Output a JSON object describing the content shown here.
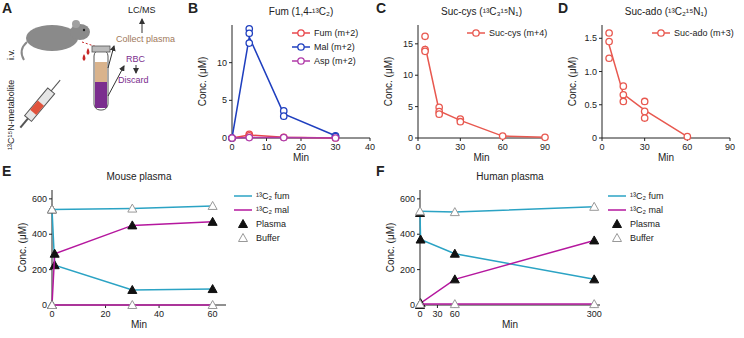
{
  "diagram": {
    "panel": "A",
    "labels": [
      "¹³C¹⁵N-metabolite",
      "i.v.",
      "LC/MS",
      "Collect plasma",
      "RBC",
      "Discard"
    ]
  },
  "chart_data": [
    {
      "panel": "B",
      "type": "line",
      "title": "Fum (1,4-¹³C₂)",
      "x_label": "Min",
      "y_label": "Conc. (μM)",
      "x": [
        0,
        5,
        15,
        30
      ],
      "xlim": [
        0,
        40
      ],
      "xticks": [
        0,
        10,
        20,
        30,
        40
      ],
      "ylim": [
        0,
        15
      ],
      "yticks": [
        0,
        5,
        10
      ],
      "legend": "upper right",
      "marker": "circle-open",
      "series": [
        {
          "name": "Fum (m+2)",
          "color": "#e8474c",
          "values": [
            0,
            0.4,
            0.1,
            0
          ],
          "replicates": [
            [
              0,
              0
            ],
            [
              0.5,
              0.3
            ],
            [
              0.1
            ],
            [
              0
            ]
          ]
        },
        {
          "name": "Mal (m+2)",
          "color": "#1f3fbf",
          "values": [
            0,
            13.4,
            3.2,
            0.3
          ],
          "replicates": [
            [
              0
            ],
            [
              14.5,
              13.9,
              12.6
            ],
            [
              3.6,
              2.9
            ],
            [
              0.3,
              0.2
            ]
          ]
        },
        {
          "name": "Asp (m+2)",
          "color": "#b03aa8",
          "values": [
            0,
            0.05,
            0.05,
            0
          ],
          "replicates": [
            [
              0
            ],
            [
              0.05
            ],
            [
              0.05
            ],
            [
              0
            ]
          ]
        }
      ]
    },
    {
      "panel": "C",
      "type": "line",
      "title": "Suc-cys (¹³C₃¹⁵N₁)",
      "x_label": "Min",
      "y_label": "Conc. (μM)",
      "x": [
        5,
        15,
        30,
        60,
        90
      ],
      "xlim": [
        0,
        90
      ],
      "xticks": [
        0,
        30,
        60,
        90
      ],
      "ylim": [
        0,
        18
      ],
      "yticks": [
        0,
        5,
        10,
        15
      ],
      "legend": "upper right",
      "marker": "circle-open",
      "series": [
        {
          "name": "Suc-cys (m+4)",
          "color": "#e8584f",
          "values": [
            14.7,
            4.3,
            2.8,
            0.3,
            0.1
          ],
          "replicates": [
            [
              16.2,
              14.1,
              13.8
            ],
            [
              4.9,
              4.2,
              3.8
            ],
            [
              3.0,
              2.6
            ],
            [
              0.3
            ],
            [
              0.1
            ]
          ]
        }
      ]
    },
    {
      "panel": "D",
      "type": "line",
      "title": "Suc-ado (¹³C₂¹⁵N₁)",
      "x_label": "Min",
      "y_label": "Conc. (μM)",
      "x": [
        5,
        15,
        30,
        60
      ],
      "xlim": [
        0,
        90
      ],
      "xticks": [
        0,
        30,
        60,
        90
      ],
      "ylim": [
        0,
        1.7
      ],
      "yticks": [
        0,
        0.5,
        {
          "value": 1,
          "label": "1.0"
        },
        1.5
      ],
      "legend": "upper right",
      "marker": "circle-open",
      "series": [
        {
          "name": "Suc-ado (m+3)",
          "color": "#e8584f",
          "values": [
            1.4,
            0.66,
            0.42,
            0.02
          ],
          "replicates": [
            [
              1.58,
              1.45,
              1.2
            ],
            [
              0.78,
              0.65,
              0.55
            ],
            [
              0.55,
              0.4,
              0.3
            ],
            [
              0.02
            ]
          ]
        }
      ]
    },
    {
      "panel": "E",
      "type": "line",
      "title": "Mouse plasma",
      "x_label": "Min",
      "y_label": "Conc. (μM)",
      "xlim": [
        0,
        65
      ],
      "xticks": [
        0,
        20,
        40,
        60
      ],
      "ylim": [
        0,
        650
      ],
      "yticks": [
        0,
        200,
        400,
        600
      ],
      "legend": "right",
      "series": [
        {
          "name": "¹³C₂ fum",
          "group": "Plasma",
          "color": "#2ba3c4",
          "marker": "triangle-filled",
          "x": [
            0,
            1,
            30,
            60
          ],
          "values": [
            540,
            225,
            85,
            90
          ]
        },
        {
          "name": "¹³C₂ mal",
          "group": "Plasma",
          "color": "#b5179e",
          "marker": "triangle-filled",
          "x": [
            0,
            1,
            30,
            60
          ],
          "values": [
            0,
            290,
            450,
            470
          ]
        },
        {
          "name": "¹³C₂ fum",
          "group": "Buffer",
          "color": "#2ba3c4",
          "marker": "triangle-open",
          "x": [
            0,
            30,
            60
          ],
          "values": [
            540,
            545,
            560
          ]
        },
        {
          "name": "¹³C₂ mal",
          "group": "Buffer",
          "color": "#b5179e",
          "marker": "triangle-open",
          "x": [
            0,
            30,
            60
          ],
          "values": [
            0,
            0,
            0
          ]
        }
      ]
    },
    {
      "panel": "F",
      "type": "line",
      "title": "Human plasma",
      "x_label": "Min",
      "y_label": "Conc. (μM)",
      "xlim": [
        0,
        310
      ],
      "xticks": [
        0,
        30,
        60,
        300
      ],
      "ylim": [
        0,
        650
      ],
      "yticks": [
        0,
        200,
        400,
        600
      ],
      "legend": "right",
      "series": [
        {
          "name": "¹³C₂ fum",
          "group": "Plasma",
          "color": "#2ba3c4",
          "marker": "triangle-filled",
          "x": [
            0,
            1,
            60,
            300
          ],
          "values": [
            520,
            370,
            290,
            145
          ]
        },
        {
          "name": "¹³C₂ mal",
          "group": "Plasma",
          "color": "#b5179e",
          "marker": "triangle-filled",
          "x": [
            0,
            1,
            60,
            300
          ],
          "values": [
            0,
            10,
            145,
            365
          ]
        },
        {
          "name": "¹³C₂ fum",
          "group": "Buffer",
          "color": "#2ba3c4",
          "marker": "triangle-open",
          "x": [
            0,
            60,
            300
          ],
          "values": [
            530,
            525,
            555
          ]
        },
        {
          "name": "¹³C₂ mal",
          "group": "Buffer",
          "color": "#b5179e",
          "marker": "triangle-open",
          "x": [
            0,
            60,
            300
          ],
          "values": [
            5,
            5,
            5
          ]
        }
      ]
    }
  ]
}
